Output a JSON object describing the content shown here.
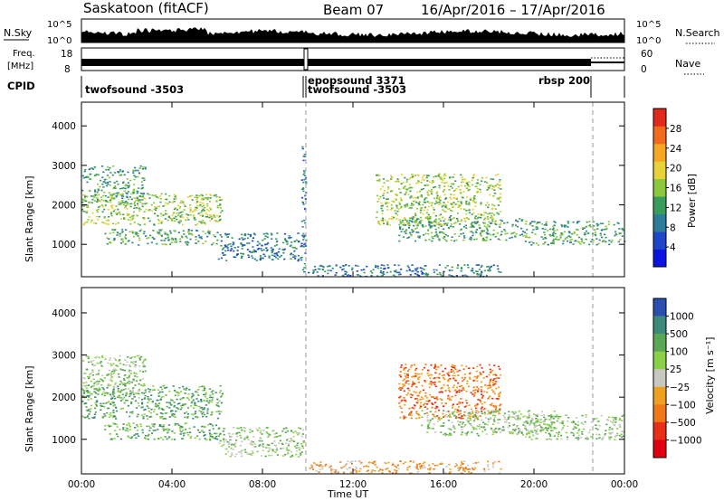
{
  "header": {
    "station": "Saskatoon (fitACF)",
    "beam": "Beam 07",
    "date_range": "16/Apr/2016 – 17/Apr/2016"
  },
  "strips": {
    "nsky_label": "N.Sky",
    "nsky_ticks": [
      "10^5",
      "10^0"
    ],
    "nsearch_label": "N.Search",
    "nsearch_ticks": [
      "10^5",
      "10^0"
    ],
    "freq_label_1": "Freq.",
    "freq_label_2": "[MHz]",
    "freq_ticks": [
      "18",
      "8"
    ],
    "nave_label": "Nave",
    "nave_ticks": [
      "60",
      "0"
    ],
    "cpid_label": "CPID",
    "cpid_entries": [
      {
        "label": "twofsound -3503",
        "start_hour": 0.0
      },
      {
        "label": "epopsound 3371",
        "start_hour": 9.85
      },
      {
        "label": "twofsound -3503",
        "start_hour": 9.95
      },
      {
        "label": "rbsp 200",
        "start_hour": 22.4
      }
    ]
  },
  "chart_data": [
    {
      "type": "heatmap",
      "name": "power",
      "xlabel": "Time UT",
      "ylabel": "Slant Range [km]",
      "x_range_hours": [
        0,
        24
      ],
      "x_ticks": [
        "00:00",
        "04:00",
        "08:00",
        "12:00",
        "16:00",
        "20:00",
        "00:00"
      ],
      "ylim": [
        180,
        4600
      ],
      "y_ticks": [
        1000,
        2000,
        3000,
        4000
      ],
      "colorbar": {
        "label": "Power [dB]",
        "ticks": [
          4,
          8,
          12,
          16,
          20,
          24,
          28
        ],
        "range": [
          0,
          32
        ],
        "colors": [
          "#0a14e0",
          "#1e46c8",
          "#2d7d9a",
          "#3a9c5a",
          "#8cc83c",
          "#e8d23a",
          "#f5a623",
          "#f26a1b",
          "#e02a1a"
        ]
      },
      "echo_regions": [
        {
          "t0": 0.0,
          "t1": 2.8,
          "r0": 2000,
          "r1": 3000,
          "level": 10
        },
        {
          "t0": 0.0,
          "t1": 6.2,
          "r0": 1500,
          "r1": 2300,
          "level": 14
        },
        {
          "t0": 1.0,
          "t1": 6.0,
          "r0": 1000,
          "r1": 1400,
          "level": 12
        },
        {
          "t0": 6.0,
          "t1": 9.8,
          "r0": 600,
          "r1": 1300,
          "level": 9
        },
        {
          "t0": 9.7,
          "t1": 9.9,
          "r0": 200,
          "r1": 3500,
          "level": 8
        },
        {
          "t0": 10.0,
          "t1": 18.5,
          "r0": 200,
          "r1": 500,
          "level": 7
        },
        {
          "t0": 13.0,
          "t1": 18.5,
          "r0": 1500,
          "r1": 2800,
          "level": 16
        },
        {
          "t0": 14.0,
          "t1": 19.5,
          "r0": 1100,
          "r1": 1700,
          "level": 13
        },
        {
          "t0": 19.5,
          "t1": 24.0,
          "r0": 1000,
          "r1": 1600,
          "level": 11
        }
      ]
    },
    {
      "type": "heatmap",
      "name": "velocity",
      "xlabel": "Time UT",
      "ylabel": "Slant Range [km]",
      "x_range_hours": [
        0,
        24
      ],
      "x_ticks": [
        "00:00",
        "04:00",
        "08:00",
        "12:00",
        "16:00",
        "20:00",
        "00:00"
      ],
      "ylim": [
        180,
        4600
      ],
      "y_ticks": [
        1000,
        2000,
        3000,
        4000
      ],
      "colorbar": {
        "label": "Velocity [m s⁻¹]",
        "ticks": [
          "1000",
          "500",
          "100",
          "25",
          "−25",
          "−100",
          "−500",
          "−1000"
        ],
        "colors": [
          "#2a4fb0",
          "#3d8a7a",
          "#5aa856",
          "#8cd04a",
          "#c8c8c0",
          "#f0a020",
          "#f07818",
          "#e83018",
          "#e00010"
        ]
      },
      "echo_regions": [
        {
          "t0": 0.0,
          "t1": 2.8,
          "r0": 2000,
          "r1": 3000,
          "vel": 25
        },
        {
          "t0": 0.0,
          "t1": 6.2,
          "r0": 1500,
          "r1": 2300,
          "vel": 100
        },
        {
          "t0": 1.0,
          "t1": 6.0,
          "r0": 1000,
          "r1": 1400,
          "vel": 100
        },
        {
          "t0": 6.0,
          "t1": 9.8,
          "r0": 600,
          "r1": 1300,
          "vel": 25
        },
        {
          "t0": 10.0,
          "t1": 18.5,
          "r0": 200,
          "r1": 500,
          "vel": -100
        },
        {
          "t0": 14.0,
          "t1": 18.5,
          "r0": 1500,
          "r1": 2800,
          "vel": -500
        },
        {
          "t0": 15.0,
          "t1": 21.0,
          "r0": 1100,
          "r1": 1700,
          "vel": 25
        },
        {
          "t0": 19.5,
          "t1": 24.0,
          "r0": 1000,
          "r1": 1600,
          "vel": 25
        }
      ]
    }
  ]
}
